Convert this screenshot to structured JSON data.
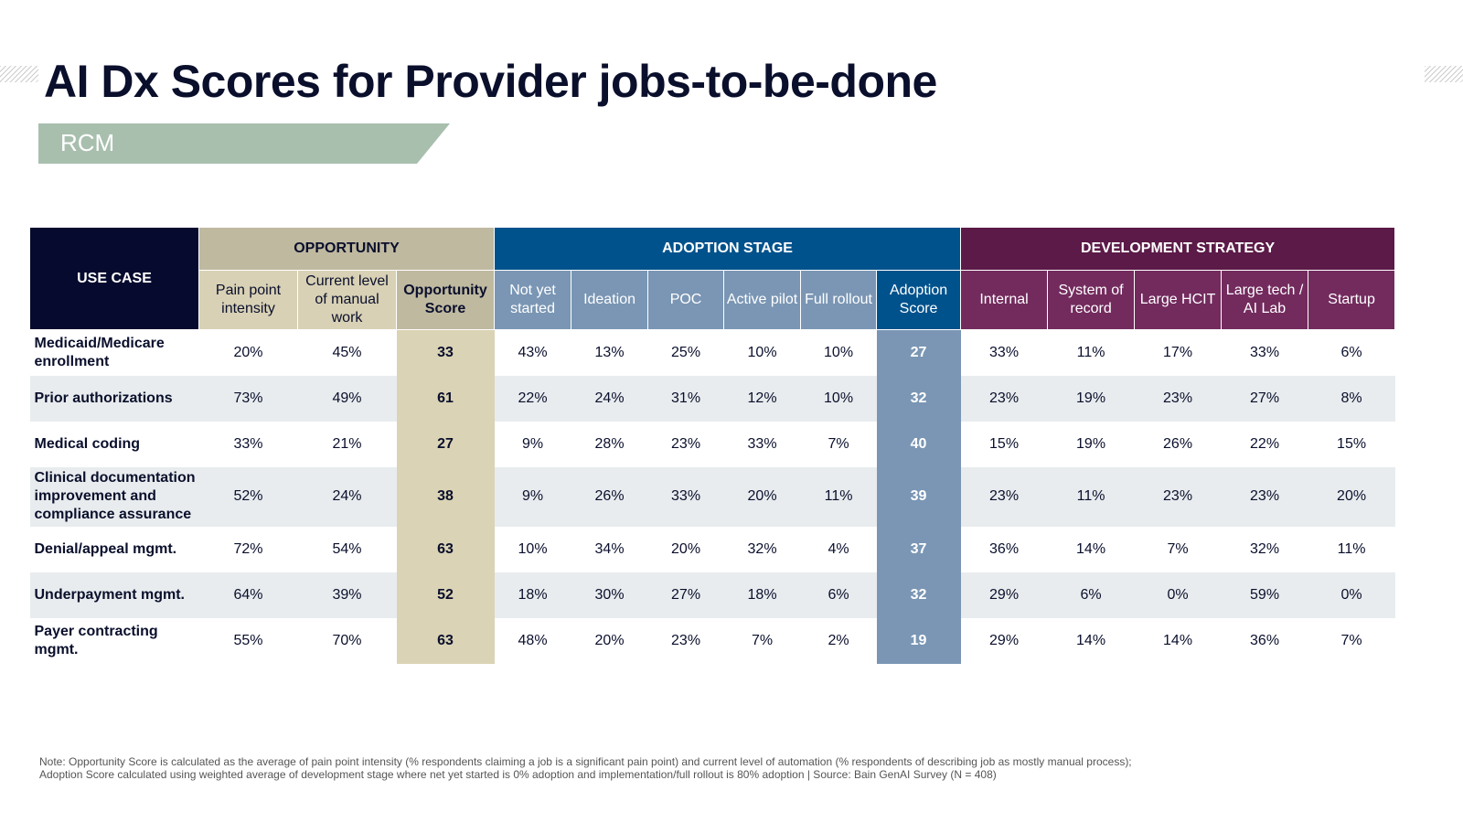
{
  "title": "AI Dx Scores for Provider jobs-to-be-done",
  "tag": "RCM",
  "table": {
    "use_case_header": "USE CASE",
    "groups": {
      "opportunity": "OPPORTUNITY",
      "adoption": "ADOPTION STAGE",
      "development": "DEVELOPMENT STRATEGY"
    },
    "columns": [
      "Pain point intensity",
      "Current level of manual work",
      "Opportunity Score",
      "Not yet started",
      "Ideation",
      "POC",
      "Active pilot",
      "Full rollout",
      "Adoption Score",
      "Internal",
      "System of record",
      "Large HCIT",
      "Large tech / AI Lab",
      "Startup"
    ],
    "rows": [
      {
        "name": "Medicaid/Medicare enrollment",
        "values": [
          "20%",
          "45%",
          "33",
          "43%",
          "13%",
          "25%",
          "10%",
          "10%",
          "27",
          "33%",
          "11%",
          "17%",
          "33%",
          "6%"
        ]
      },
      {
        "name": "Prior authorizations",
        "values": [
          "73%",
          "49%",
          "61",
          "22%",
          "24%",
          "31%",
          "12%",
          "10%",
          "32",
          "23%",
          "19%",
          "23%",
          "27%",
          "8%"
        ]
      },
      {
        "name": "Medical coding",
        "values": [
          "33%",
          "21%",
          "27",
          "9%",
          "28%",
          "23%",
          "33%",
          "7%",
          "40",
          "15%",
          "19%",
          "26%",
          "22%",
          "15%"
        ]
      },
      {
        "name": "Clinical documentation improvement and compliance assurance",
        "values": [
          "52%",
          "24%",
          "38",
          "9%",
          "26%",
          "33%",
          "20%",
          "11%",
          "39",
          "23%",
          "11%",
          "23%",
          "23%",
          "20%"
        ]
      },
      {
        "name": "Denial/appeal mgmt.",
        "values": [
          "72%",
          "54%",
          "63",
          "10%",
          "34%",
          "20%",
          "32%",
          "4%",
          "37",
          "36%",
          "14%",
          "7%",
          "32%",
          "11%"
        ]
      },
      {
        "name": "Underpayment mgmt.",
        "values": [
          "64%",
          "39%",
          "52",
          "18%",
          "30%",
          "27%",
          "18%",
          "6%",
          "32",
          "29%",
          "6%",
          "0%",
          "59%",
          "0%"
        ]
      },
      {
        "name": "Payer contracting mgmt.",
        "values": [
          "55%",
          "70%",
          "63",
          "48%",
          "20%",
          "23%",
          "7%",
          "2%",
          "19",
          "29%",
          "14%",
          "14%",
          "36%",
          "7%"
        ]
      }
    ]
  },
  "note": [
    "Note: Opportunity Score is calculated as the average of pain point intensity (% respondents claiming a job is a significant pain point) and current level of automation (% respondents of describing job as mostly manual process);",
    "Adoption Score calculated using weighted average of development stage where net yet started is 0% adoption and implementation/full rollout is 80% adoption | Source: Bain GenAI Survey (N = 408)"
  ],
  "colors": {
    "opportunity": "#bfb9a0",
    "adoption": "#00528c",
    "adoption_sub": "#7a96b4",
    "development": "#5b1a47",
    "development_sub": "#732b5e",
    "use_case": "#050a2e",
    "tag": "#a8bfae"
  }
}
